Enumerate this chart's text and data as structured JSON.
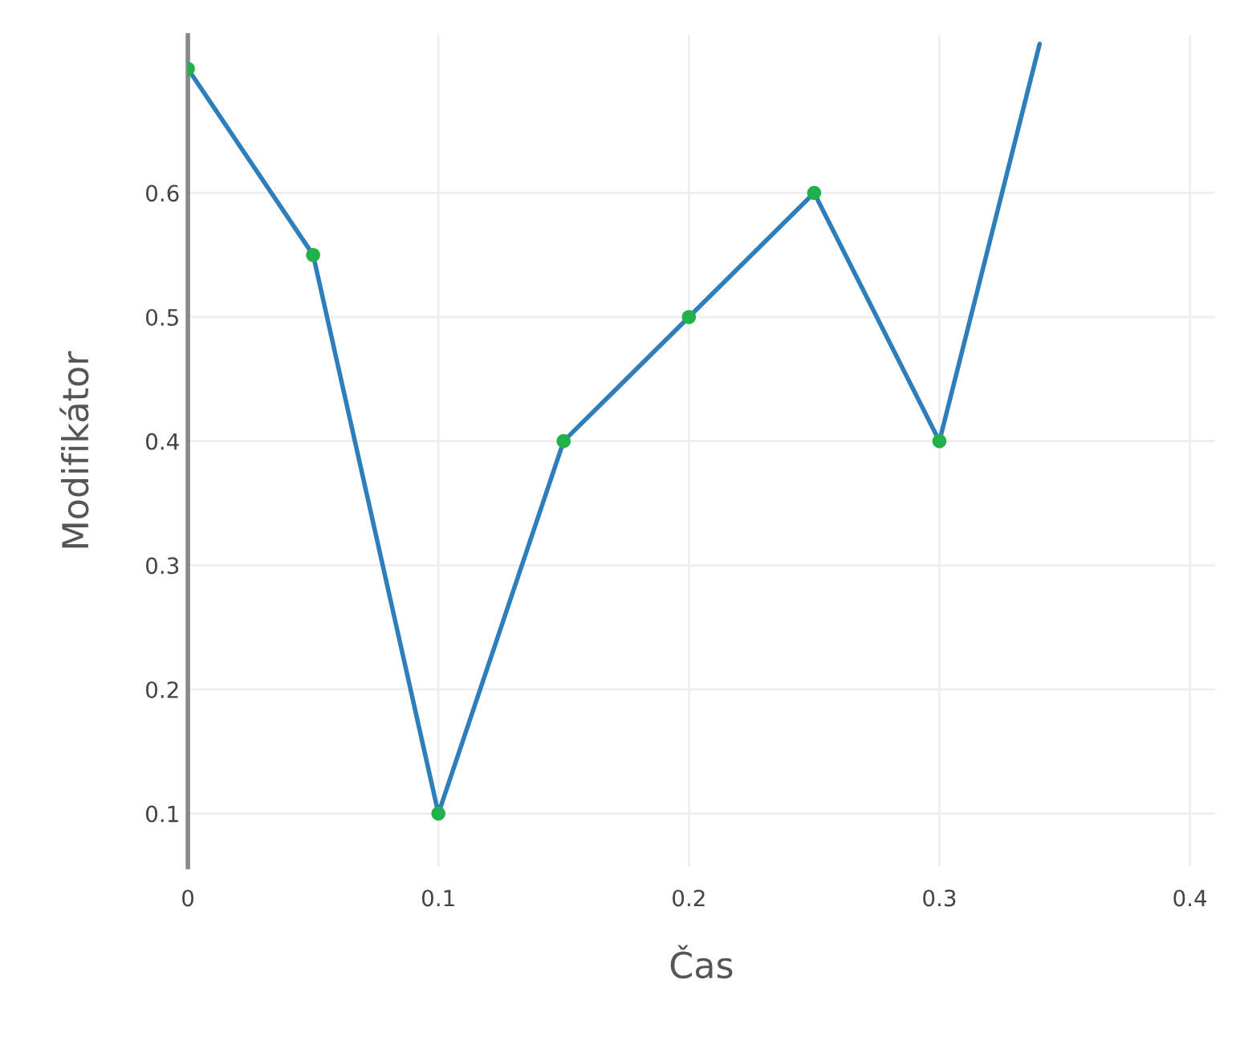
{
  "chart_data": {
    "type": "line",
    "xlabel": "Čas",
    "ylabel": "Modifikátor",
    "x": [
      0,
      0.05,
      0.1,
      0.15,
      0.2,
      0.25,
      0.3,
      0.34
    ],
    "series": [
      {
        "color": "#2e7ebb",
        "colors": [
          "#22b04b",
          "#22b04b",
          "#22b04b",
          "#22b04b",
          "#22b04b",
          "#22b04b",
          "#22b04b",
          null
        ],
        "values": [
          0.7,
          0.55,
          0.1,
          0.4,
          0.5,
          0.6,
          0.4,
          0.72
        ]
      }
    ],
    "xlim": [
      0,
      0.41
    ],
    "ylim": [
      0.057,
      0.727
    ],
    "xticks": [
      0,
      0.1,
      0.2,
      0.3,
      0.4
    ],
    "yticks": [
      0.1,
      0.2,
      0.3,
      0.4,
      0.5,
      0.6
    ],
    "grid": true,
    "marker": "circle",
    "line_style": "solid"
  }
}
